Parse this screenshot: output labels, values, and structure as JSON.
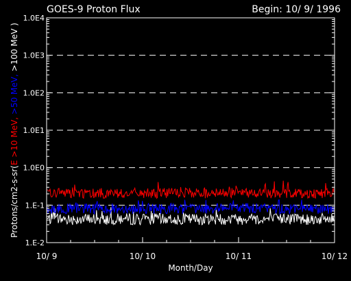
{
  "header": {
    "title": "GOES-9 Proton Flux",
    "begin": "Begin: 10/ 9/ 1996"
  },
  "chart_data": {
    "type": "line",
    "title": "GOES-9 Proton Flux",
    "xlabel": "Month/Day",
    "ylabel_parts": [
      {
        "text": "Protons/cm2-s-sr(",
        "color": "#ffffff"
      },
      {
        "text": "E >10 MeV, ",
        "color": "#ff0000"
      },
      {
        "text": ">50 MeV, ",
        "color": "#0000ff"
      },
      {
        "text": ">100 MeV )",
        "color": "#ffffff"
      }
    ],
    "x_ticks": [
      "10/ 9",
      "10/ 10",
      "10/ 11",
      "10/ 12"
    ],
    "xlim": [
      0,
      3
    ],
    "y_scale": "log",
    "ylim": [
      0.01,
      10000
    ],
    "y_ticks": [
      {
        "value": 0.01,
        "label": "1.E-2"
      },
      {
        "value": 0.1,
        "label": "1.E-1"
      },
      {
        "value": 1,
        "label": "1.0E0"
      },
      {
        "value": 10,
        "label": "1.0E1"
      },
      {
        "value": 100,
        "label": "1.0E2"
      },
      {
        "value": 1000,
        "label": "1.0E3"
      },
      {
        "value": 10000,
        "label": "1.0E4"
      }
    ],
    "grid": "dashed horizontal lines at each decade",
    "series": [
      {
        "name": "E >10 MeV",
        "color": "#ff0000",
        "values_range": [
          0.13,
          0.45
        ],
        "typical": 0.22
      },
      {
        "name": ">50 MeV",
        "color": "#0000ff",
        "values_range": [
          0.05,
          0.14
        ],
        "typical": 0.085
      },
      {
        "name": ">100 MeV",
        "color": "#ffffff",
        "values_range": [
          0.025,
          0.09
        ],
        "typical": 0.045
      }
    ]
  }
}
